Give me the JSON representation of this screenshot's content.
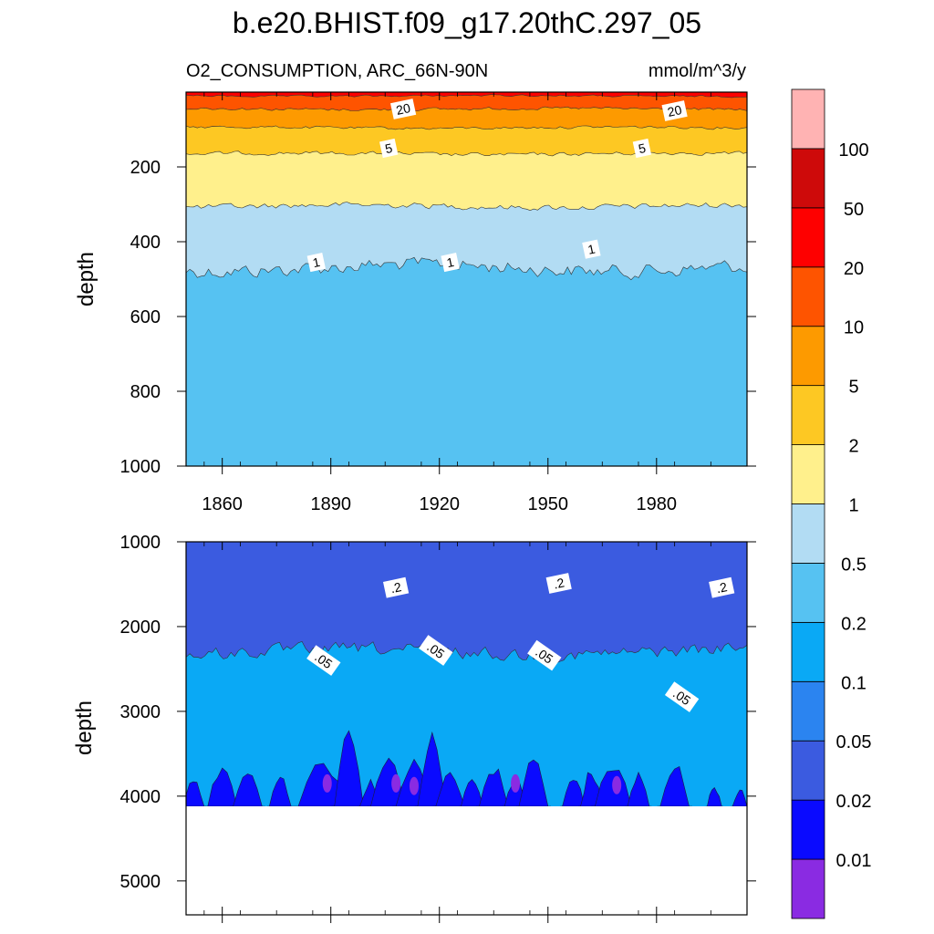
{
  "chart_data": {
    "type": "filled-contour",
    "title": "b.e20.BHIST.f09_g17.20thC.297_05",
    "left_string": "O2_CONSUMPTION, ARC_66N-90N",
    "right_string": "mmol/m^3/y",
    "xlim": [
      1850,
      2005
    ],
    "x_ticks": [
      1860,
      1890,
      1920,
      1950,
      1980
    ],
    "x_tick_labels": [
      "1860",
      "1890",
      "1920",
      "1950",
      "1980"
    ],
    "colorbar": {
      "levels": [
        "0.01",
        "0.02",
        "0.05",
        "0.1",
        "0.2",
        "0.5",
        "1",
        "2",
        "5",
        "10",
        "20",
        "50",
        "100"
      ],
      "colors": [
        "#8a2be2",
        "#0a0aff",
        "#3b5be0",
        "#2b84f0",
        "#0aa9f5",
        "#56c2f2",
        "#b2dcf3",
        "#fff08c",
        "#fdc823",
        "#fd9a00",
        "#fe5400",
        "#fe0000",
        "#ce0a0a",
        "#ffb3b3"
      ]
    },
    "panels": [
      {
        "name": "upper",
        "ylabel": "depth",
        "ylim": [
          0,
          1000
        ],
        "y_ticks": [
          200,
          400,
          600,
          800,
          1000
        ],
        "y_tick_labels": [
          "200",
          "400",
          "600",
          "800",
          "1000"
        ],
        "contour_labels": [
          {
            "text": "20",
            "year": 1910,
            "depth": 45
          },
          {
            "text": "20",
            "year": 1985,
            "depth": 50
          },
          {
            "text": "5",
            "year": 1906,
            "depth": 150
          },
          {
            "text": "5",
            "year": 1976,
            "depth": 150
          },
          {
            "text": "1",
            "year": 1886,
            "depth": 455
          },
          {
            "text": "1",
            "year": 1923,
            "depth": 455
          },
          {
            "text": "1",
            "year": 1962,
            "depth": 420
          }
        ],
        "layers": [
          {
            "color": "#56c2f2",
            "top_depth": 830,
            "amp": 45
          },
          {
            "color": "#b2dcf3",
            "top_depth": 470,
            "amp": 30
          },
          {
            "color": "#fff08c",
            "top_depth": 305,
            "amp": 12
          },
          {
            "color": "#fdc823",
            "top_depth": 165,
            "amp": 8
          },
          {
            "color": "#fd9a00",
            "top_depth": 95,
            "amp": 6
          },
          {
            "color": "#fe5400",
            "top_depth": 45,
            "amp": 6
          },
          {
            "color": "#fe0000",
            "top_depth": 10,
            "amp": 4
          }
        ]
      },
      {
        "name": "lower",
        "ylabel": "depth",
        "ylim": [
          1000,
          5400
        ],
        "y_ticks": [
          1000,
          2000,
          3000,
          4000,
          5000
        ],
        "y_tick_labels": [
          "1000",
          "2000",
          "3000",
          "4000",
          "5000"
        ],
        "data_bottom_depth": 4120,
        "contour_labels": [
          {
            "text": ".2",
            "year": 1908,
            "depth": 1540
          },
          {
            "text": ".2",
            "year": 1953,
            "depth": 1490
          },
          {
            "text": ".2",
            "year": 1998,
            "depth": 1540
          },
          {
            "text": ".05",
            "year": 1888,
            "depth": 2400
          },
          {
            "text": ".05",
            "year": 1919,
            "depth": 2280
          },
          {
            "text": ".05",
            "year": 1949,
            "depth": 2340
          },
          {
            "text": ".05",
            "year": 1987,
            "depth": 2830
          }
        ],
        "layers": [
          {
            "color": "#0aa9f5",
            "top_depth": 1380,
            "amp": 60
          },
          {
            "color": "#2b84f0",
            "top_depth": 1950,
            "amp": 90
          },
          {
            "color": "#3b5be0",
            "top_depth": 2300,
            "amp": 120
          }
        ],
        "deep_patches": [
          {
            "year": 1852,
            "width": 3,
            "top_depth": 3750
          },
          {
            "year": 1860,
            "width": 4,
            "top_depth": 3600
          },
          {
            "year": 1867,
            "width": 4,
            "top_depth": 3650
          },
          {
            "year": 1876,
            "width": 3,
            "top_depth": 3700
          },
          {
            "year": 1888,
            "width": 7,
            "top_depth": 3550
          },
          {
            "year": 1895,
            "width": 4,
            "top_depth": 3100
          },
          {
            "year": 1901,
            "width": 3,
            "top_depth": 3800
          },
          {
            "year": 1906,
            "width": 5,
            "top_depth": 3500
          },
          {
            "year": 1913,
            "width": 5,
            "top_depth": 3550
          },
          {
            "year": 1918,
            "width": 4,
            "top_depth": 3200
          },
          {
            "year": 1923,
            "width": 4,
            "top_depth": 3700
          },
          {
            "year": 1929,
            "width": 3,
            "top_depth": 3750
          },
          {
            "year": 1935,
            "width": 4,
            "top_depth": 3600
          },
          {
            "year": 1941,
            "width": 3,
            "top_depth": 3750
          },
          {
            "year": 1946,
            "width": 4,
            "top_depth": 3500
          },
          {
            "year": 1957,
            "width": 3,
            "top_depth": 3700
          },
          {
            "year": 1962,
            "width": 3,
            "top_depth": 3650
          },
          {
            "year": 1968,
            "width": 5,
            "top_depth": 3550
          },
          {
            "year": 1975,
            "width": 3,
            "top_depth": 3700
          },
          {
            "year": 1985,
            "width": 4,
            "top_depth": 3550
          },
          {
            "year": 1996,
            "width": 2,
            "top_depth": 3850
          },
          {
            "year": 2003,
            "width": 2,
            "top_depth": 3900
          }
        ],
        "purple_patches": [
          {
            "year": 1889,
            "depth": 3850
          },
          {
            "year": 1908,
            "depth": 3850
          },
          {
            "year": 1913,
            "depth": 3880
          },
          {
            "year": 1941,
            "depth": 3850
          },
          {
            "year": 1969,
            "depth": 3870
          }
        ]
      }
    ]
  }
}
